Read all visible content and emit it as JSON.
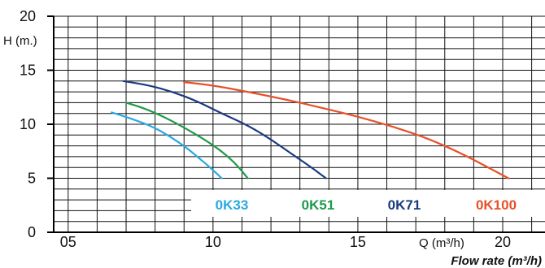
{
  "chart_data": {
    "type": "line",
    "x_axis": {
      "range": [
        4.5,
        20
      ],
      "tick_values": [
        5,
        10,
        15,
        20
      ],
      "tick_labels": [
        "05",
        "10",
        "15",
        "20"
      ],
      "label": "Q (m³/h)",
      "title": "Flow rate (m³/h)"
    },
    "y_axis": {
      "range": [
        0,
        20
      ],
      "tick_values": [
        0,
        5,
        10,
        15,
        20
      ],
      "tick_labels": [
        "0",
        "5",
        "10",
        "15",
        "20"
      ],
      "label": "H (m.)"
    },
    "grid": true,
    "legend_position": "bottom",
    "series": [
      {
        "name": "0K33",
        "color": "#29a8e0",
        "points": [
          [
            6.5,
            11.1
          ],
          [
            7.2,
            10.5
          ],
          [
            7.9,
            9.8
          ],
          [
            8.5,
            8.9
          ],
          [
            9.1,
            7.8
          ],
          [
            9.5,
            6.9
          ],
          [
            9.9,
            6.0
          ],
          [
            10.3,
            5.0
          ]
        ]
      },
      {
        "name": "0K51",
        "color": "#1e9a4a",
        "points": [
          [
            7.0,
            12.0
          ],
          [
            7.6,
            11.5
          ],
          [
            8.3,
            10.7
          ],
          [
            9.0,
            9.7
          ],
          [
            9.7,
            8.6
          ],
          [
            10.3,
            7.5
          ],
          [
            10.8,
            6.3
          ],
          [
            11.2,
            5.0
          ]
        ]
      },
      {
        "name": "0K71",
        "color": "#1a3a80",
        "points": [
          [
            6.9,
            14.0
          ],
          [
            7.8,
            13.6
          ],
          [
            8.6,
            13.0
          ],
          [
            9.4,
            12.2
          ],
          [
            10.3,
            11.0
          ],
          [
            11.2,
            9.9
          ],
          [
            12.0,
            8.6
          ],
          [
            12.8,
            7.1
          ],
          [
            13.4,
            6.0
          ],
          [
            13.9,
            5.0
          ]
        ]
      },
      {
        "name": "0K100",
        "color": "#e8502a",
        "points": [
          [
            9.0,
            13.9
          ],
          [
            10.0,
            13.6
          ],
          [
            11.2,
            13.0
          ],
          [
            12.5,
            12.3
          ],
          [
            13.8,
            11.5
          ],
          [
            15.0,
            10.7
          ],
          [
            16.2,
            9.8
          ],
          [
            17.4,
            8.7
          ],
          [
            18.5,
            7.4
          ],
          [
            19.5,
            6.0
          ],
          [
            20.2,
            5.0
          ]
        ]
      }
    ]
  }
}
